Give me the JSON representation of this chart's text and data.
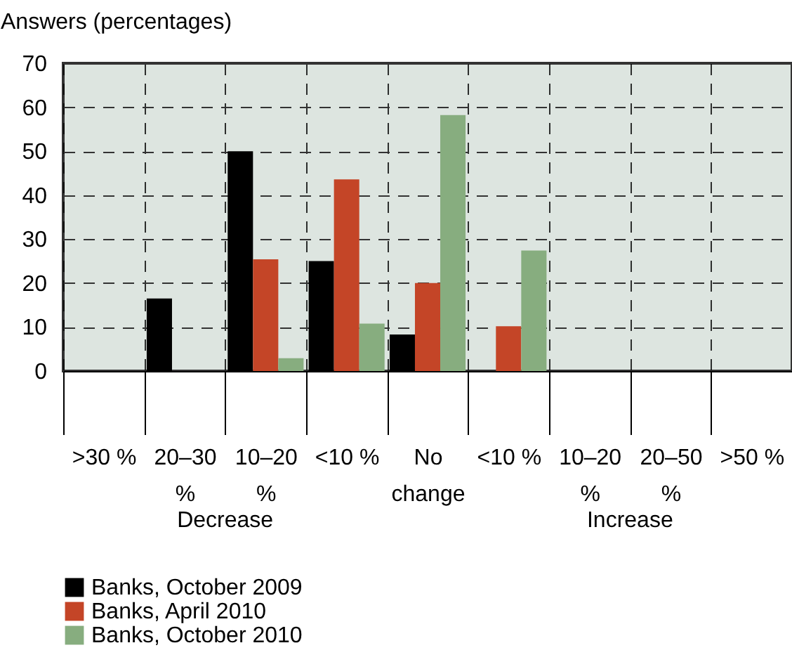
{
  "chart_data": {
    "type": "bar",
    "ylabel": "Answers (percentages)",
    "categories": [
      ">30 %",
      "20–30 %",
      "10–20 %",
      "<10 %",
      "No change",
      "<10 %",
      "10–20 %",
      "20–50 %",
      ">50 %"
    ],
    "series": [
      {
        "name": "Banks, October 2009",
        "color": "#000000",
        "values": [
          0,
          16.5,
          50,
          25,
          8.3,
          0,
          0,
          0,
          0
        ]
      },
      {
        "name": "Banks, April 2010",
        "color": "#c44527",
        "values": [
          0,
          0,
          25.4,
          43.6,
          20,
          10.2,
          0,
          0,
          0
        ]
      },
      {
        "name": "Banks, October 2010",
        "color": "#87ad7f",
        "values": [
          0,
          0,
          2.9,
          10.8,
          58.2,
          27.4,
          0,
          0,
          0
        ]
      }
    ],
    "ylim": [
      0,
      70
    ],
    "yticks": [
      0,
      10,
      20,
      30,
      40,
      50,
      60,
      70
    ],
    "grid": true,
    "legend": "bottom left",
    "annotations": [
      "Decrease",
      "Increase"
    ]
  }
}
